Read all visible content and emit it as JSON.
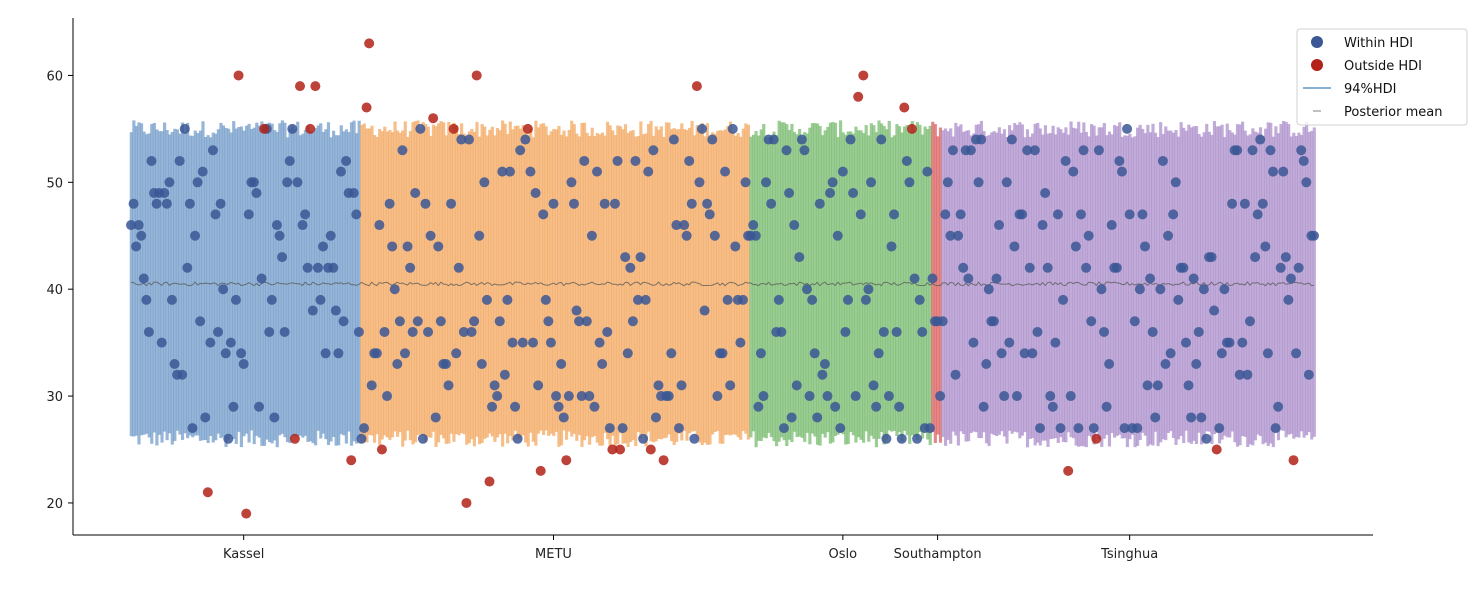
{
  "chart_data": {
    "type": "scatter",
    "xlabel": "",
    "ylabel": "",
    "ylim": [
      17,
      65
    ],
    "yticks": [
      20,
      30,
      40,
      50,
      60
    ],
    "grid": false,
    "legend_position": "top-right",
    "legend": [
      {
        "label": "Within HDI",
        "marker": "dot",
        "color": "#3b5795"
      },
      {
        "label": "Outside HDI",
        "marker": "dot",
        "color": "#b22218"
      },
      {
        "label": "94%HDI",
        "marker": "line",
        "color": "#87aed3"
      },
      {
        "label": "Posterior mean",
        "marker": "dash",
        "color": "#aaaaaa"
      }
    ],
    "posterior_mean": 40.5,
    "hdi": [
      26,
      55
    ],
    "groups": [
      {
        "label": "Kassel",
        "color": "#6d99c7",
        "start_index": 0,
        "count": 90,
        "tick_index": 44
      },
      {
        "label": "METU",
        "color": "#f2a55c",
        "start_index": 90,
        "count": 152,
        "tick_index": 165
      },
      {
        "label": "Oslo",
        "color": "#73b96a",
        "start_index": 242,
        "count": 71,
        "tick_index": 278
      },
      {
        "label": "Southampton",
        "color": "#d85a5a",
        "start_index": 313,
        "count": 4,
        "tick_index": 315
      },
      {
        "label": "Tsinghua",
        "color": "#a98bc9",
        "start_index": 317,
        "count": 146,
        "tick_index": 390
      }
    ],
    "n_total": 463,
    "outside_hdi": [
      {
        "x": 30,
        "y": 21
      },
      {
        "x": 42,
        "y": 60
      },
      {
        "x": 45,
        "y": 19
      },
      {
        "x": 52,
        "y": 55
      },
      {
        "x": 64,
        "y": 26
      },
      {
        "x": 66,
        "y": 59
      },
      {
        "x": 70,
        "y": 55
      },
      {
        "x": 72,
        "y": 59
      },
      {
        "x": 86,
        "y": 24
      },
      {
        "x": 92,
        "y": 57
      },
      {
        "x": 93,
        "y": 63
      },
      {
        "x": 98,
        "y": 25
      },
      {
        "x": 118,
        "y": 56
      },
      {
        "x": 126,
        "y": 55
      },
      {
        "x": 131,
        "y": 20
      },
      {
        "x": 135,
        "y": 60
      },
      {
        "x": 140,
        "y": 22
      },
      {
        "x": 155,
        "y": 55
      },
      {
        "x": 160,
        "y": 23
      },
      {
        "x": 170,
        "y": 24
      },
      {
        "x": 188,
        "y": 25
      },
      {
        "x": 191,
        "y": 25
      },
      {
        "x": 203,
        "y": 25
      },
      {
        "x": 208,
        "y": 24
      },
      {
        "x": 221,
        "y": 59
      },
      {
        "x": 284,
        "y": 58
      },
      {
        "x": 286,
        "y": 60
      },
      {
        "x": 302,
        "y": 57
      },
      {
        "x": 305,
        "y": 55
      },
      {
        "x": 366,
        "y": 23
      },
      {
        "x": 377,
        "y": 26
      },
      {
        "x": 424,
        "y": 25
      },
      {
        "x": 454,
        "y": 24
      }
    ]
  }
}
